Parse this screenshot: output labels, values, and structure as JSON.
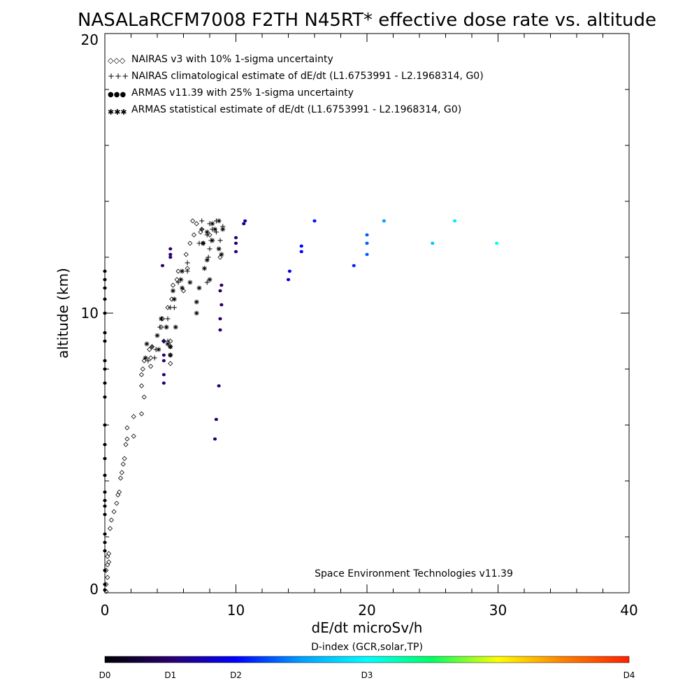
{
  "chart_data": {
    "type": "scatter",
    "title": "NASALaRCFM7008  F2TH N45RT* effective dose rate vs. altitude",
    "xlabel": "dE/dt microSv/h",
    "ylabel": "altitude (km)",
    "xlim": [
      0,
      40
    ],
    "ylim": [
      0,
      20
    ],
    "x_ticks": [
      "0",
      "10",
      "20",
      "30",
      "40"
    ],
    "y_ticks": [
      "0",
      "10",
      "20"
    ],
    "grid": false,
    "legend_position": "top-left",
    "legend": [
      {
        "marker": "◇◇◇",
        "color": "#000000",
        "label": "NAIRAS v3 with 10% 1-sigma uncertainty"
      },
      {
        "marker": "+++",
        "color": "#000000",
        "label": "NAIRAS climatological estimate of dE/dt (L1.6753991 - L2.1968314, G0)"
      },
      {
        "marker": "●●●",
        "color": "#1a3ad8",
        "label": "ARMAS v11.39 with 25% 1-sigma uncertainty"
      },
      {
        "marker": "✱✱✱",
        "color": "#000000",
        "label": "ARMAS statistical estimate of dE/dt (L1.6753991 - L2.1968314, G0)"
      }
    ],
    "annotation": "Space Environment Technologies v11.39",
    "colorbar": {
      "title": "D-index (GCR,solar,TP)",
      "labels": [
        {
          "text": "D0",
          "value": 0
        },
        {
          "text": "D1",
          "value": 2.5
        },
        {
          "text": "D2",
          "value": 5
        },
        {
          "text": "D3",
          "value": 10
        },
        {
          "text": "D4",
          "value": 20
        }
      ],
      "range": [
        0,
        20
      ],
      "stops": [
        "#000000",
        "#2a006e",
        "#0000ff",
        "#00a0ff",
        "#00ffff",
        "#00ff60",
        "#ffff00",
        "#ff8000",
        "#ff2000"
      ]
    },
    "series": [
      {
        "name": "NAIRAS v3 with 10% 1-sigma uncertainty",
        "marker": "diamond",
        "points": [
          [
            0.1,
            0.05
          ],
          [
            0.1,
            0.3
          ],
          [
            0.2,
            0.55
          ],
          [
            0.1,
            0.8
          ],
          [
            0.2,
            1.0
          ],
          [
            0.3,
            1.1
          ],
          [
            0.2,
            1.3
          ],
          [
            0.3,
            1.4
          ],
          [
            0.4,
            2.3
          ],
          [
            0.5,
            2.6
          ],
          [
            0.7,
            2.9
          ],
          [
            0.9,
            3.2
          ],
          [
            1.0,
            3.5
          ],
          [
            1.1,
            3.6
          ],
          [
            1.2,
            4.1
          ],
          [
            1.3,
            4.3
          ],
          [
            1.4,
            4.6
          ],
          [
            1.5,
            4.8
          ],
          [
            1.6,
            5.3
          ],
          [
            1.7,
            5.5
          ],
          [
            2.2,
            5.6
          ],
          [
            1.7,
            5.9
          ],
          [
            2.2,
            6.3
          ],
          [
            2.8,
            6.4
          ],
          [
            3.0,
            7.0
          ],
          [
            2.8,
            7.4
          ],
          [
            2.8,
            7.8
          ],
          [
            2.9,
            8.0
          ],
          [
            3.5,
            8.1
          ],
          [
            3.0,
            8.3
          ],
          [
            3.5,
            8.4
          ],
          [
            3.4,
            8.7
          ],
          [
            3.6,
            8.8
          ],
          [
            5.0,
            8.2
          ],
          [
            5.0,
            8.5
          ],
          [
            5.0,
            8.8
          ],
          [
            4.5,
            9.0
          ],
          [
            5.0,
            9.0
          ],
          [
            4.3,
            9.5
          ],
          [
            4.4,
            9.8
          ],
          [
            4.8,
            10.2
          ],
          [
            5.1,
            10.5
          ],
          [
            5.2,
            11.0
          ],
          [
            6.0,
            10.8
          ],
          [
            5.5,
            11.2
          ],
          [
            5.6,
            11.5
          ],
          [
            6.3,
            11.6
          ],
          [
            6.2,
            12.1
          ],
          [
            6.5,
            12.5
          ],
          [
            6.8,
            12.8
          ],
          [
            7.3,
            12.9
          ],
          [
            7.4,
            13.0
          ],
          [
            7.0,
            13.2
          ],
          [
            6.7,
            13.3
          ],
          [
            8.8,
            12.0
          ],
          [
            7.5,
            12.5
          ],
          [
            8.0,
            12.8
          ]
        ]
      },
      {
        "name": "NAIRAS climatological estimate of dE/dt (L1.6753991 - L2.1968314, G0)",
        "marker": "plus",
        "points": [
          [
            3.3,
            8.3
          ],
          [
            3.8,
            8.4
          ],
          [
            3.9,
            8.7
          ],
          [
            3.6,
            8.8
          ],
          [
            4.8,
            9.0
          ],
          [
            4.3,
            9.8
          ],
          [
            4.8,
            9.8
          ],
          [
            4.2,
            9.5
          ],
          [
            4.7,
            9.5
          ],
          [
            5.0,
            10.2
          ],
          [
            5.3,
            10.2
          ],
          [
            5.6,
            11.1
          ],
          [
            6.3,
            11.5
          ],
          [
            6.3,
            11.8
          ],
          [
            7.8,
            11.1
          ],
          [
            7.9,
            12.0
          ],
          [
            8.0,
            12.3
          ],
          [
            8.1,
            12.6
          ],
          [
            8.8,
            12.6
          ],
          [
            7.2,
            12.5
          ],
          [
            7.8,
            12.8
          ],
          [
            8.5,
            12.9
          ],
          [
            7.4,
            13.0
          ],
          [
            8.2,
            13.0
          ],
          [
            9.0,
            13.1
          ],
          [
            8.0,
            13.2
          ],
          [
            8.5,
            13.3
          ],
          [
            7.4,
            13.3
          ]
        ]
      },
      {
        "name": "ARMAS statistical estimate of dE/dt (L1.6753991 - L2.1968314, G0)",
        "marker": "asterisk",
        "points": [
          [
            3.1,
            8.4
          ],
          [
            3.2,
            8.9
          ],
          [
            4.1,
            8.7
          ],
          [
            4.0,
            9.2
          ],
          [
            4.3,
            9.8
          ],
          [
            4.7,
            9.5
          ],
          [
            5.4,
            9.5
          ],
          [
            5.0,
            8.5
          ],
          [
            5.0,
            8.8
          ],
          [
            4.8,
            8.9
          ],
          [
            5.3,
            10.5
          ],
          [
            5.2,
            10.8
          ],
          [
            5.9,
            10.9
          ],
          [
            5.8,
            11.2
          ],
          [
            5.9,
            11.5
          ],
          [
            6.5,
            11.1
          ],
          [
            7.0,
            10.0
          ],
          [
            7.0,
            10.4
          ],
          [
            7.2,
            10.9
          ],
          [
            7.6,
            11.6
          ],
          [
            7.8,
            11.9
          ],
          [
            8.0,
            11.2
          ],
          [
            7.5,
            12.5
          ],
          [
            7.8,
            12.9
          ],
          [
            8.2,
            12.6
          ],
          [
            8.7,
            12.3
          ],
          [
            8.9,
            12.1
          ],
          [
            9.0,
            13.0
          ],
          [
            8.2,
            13.2
          ],
          [
            8.7,
            13.3
          ],
          [
            8.4,
            13.0
          ]
        ]
      },
      {
        "name": "ARMAS v11.39 with 25% 1-sigma uncertainty",
        "marker": "circle",
        "points": [
          [
            0.0,
            0.1
          ],
          [
            0.0,
            0.3
          ],
          [
            0.0,
            0.8
          ],
          [
            0.0,
            1.5
          ],
          [
            0.0,
            1.8
          ],
          [
            0.0,
            2.1
          ],
          [
            0.0,
            2.8
          ],
          [
            0.0,
            3.1
          ],
          [
            0.0,
            3.3
          ],
          [
            0.0,
            3.6
          ],
          [
            0.0,
            4.2
          ],
          [
            0.0,
            4.8
          ],
          [
            0.0,
            5.3
          ],
          [
            0.0,
            6.0
          ],
          [
            0.0,
            7.0
          ],
          [
            0.0,
            7.5
          ],
          [
            0.0,
            8.0
          ],
          [
            0.0,
            8.3
          ],
          [
            0.0,
            9.0
          ],
          [
            0.0,
            9.3
          ],
          [
            0.0,
            10.0
          ],
          [
            0.0,
            10.5
          ],
          [
            0.0,
            10.9
          ],
          [
            0.0,
            11.2
          ],
          [
            0.0,
            11.5
          ],
          [
            4.5,
            7.5
          ],
          [
            4.5,
            7.8
          ],
          [
            4.5,
            8.3
          ],
          [
            4.5,
            8.5
          ],
          [
            4.5,
            9.0
          ],
          [
            4.4,
            11.7
          ],
          [
            5.0,
            12.0
          ],
          [
            5.0,
            12.1
          ],
          [
            5.0,
            12.3
          ],
          [
            8.4,
            5.5
          ],
          [
            8.5,
            6.2
          ],
          [
            8.7,
            7.4
          ],
          [
            8.8,
            9.4
          ],
          [
            8.8,
            9.8
          ],
          [
            8.9,
            10.3
          ],
          [
            8.8,
            10.8
          ],
          [
            8.9,
            11.0
          ],
          [
            10.0,
            12.2
          ],
          [
            10.0,
            12.5
          ],
          [
            10.0,
            12.7
          ],
          [
            10.6,
            13.2
          ],
          [
            10.7,
            13.3
          ],
          [
            14.0,
            11.2
          ],
          [
            14.1,
            11.5
          ],
          [
            15.0,
            12.2
          ],
          [
            15.0,
            12.4
          ],
          [
            16.0,
            13.3
          ],
          [
            19.0,
            11.7
          ],
          [
            20.0,
            12.1
          ],
          [
            20.0,
            12.5
          ],
          [
            20.0,
            12.8
          ],
          [
            21.3,
            13.3
          ],
          [
            25.0,
            12.5
          ],
          [
            26.7,
            13.3
          ],
          [
            29.9,
            12.5
          ]
        ],
        "d_index": [
          0.1,
          0.1,
          0.1,
          0.1,
          0.1,
          0.1,
          0.1,
          0.1,
          0.1,
          0.1,
          0.1,
          0.1,
          0.1,
          0.1,
          0.1,
          0.1,
          0.1,
          0.1,
          0.1,
          0.1,
          0.1,
          0.1,
          0.1,
          0.1,
          0.1,
          2.5,
          2.5,
          2.5,
          2.5,
          2.5,
          2.5,
          2.5,
          2.5,
          2.5,
          2.5,
          2.5,
          2.5,
          2.5,
          2.5,
          2.5,
          2.5,
          2.5,
          2.7,
          2.7,
          2.7,
          3.2,
          3.2,
          4.5,
          4.5,
          5.0,
          5.0,
          5.3,
          5.6,
          6.5,
          6.5,
          6.5,
          7.5,
          8.5,
          9.5,
          10.2
        ]
      }
    ]
  }
}
